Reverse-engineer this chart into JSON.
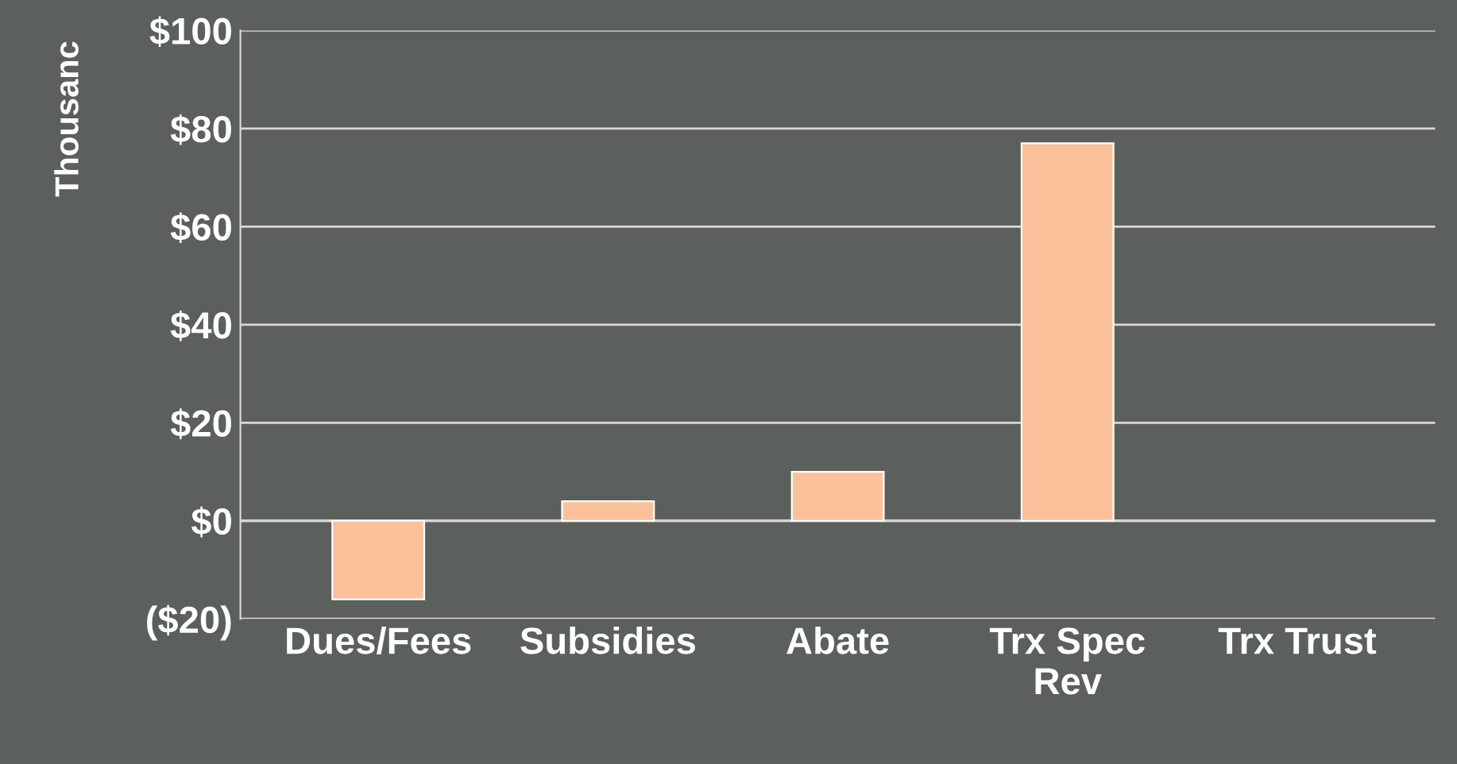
{
  "chart_data": {
    "type": "bar",
    "ylabel": "Thousanc",
    "categories": [
      "Dues/Fees",
      "Subsidies",
      "Abate",
      "Trx Spec\nRev",
      "Trx Trust"
    ],
    "values": [
      -16,
      4,
      10,
      77,
      null
    ],
    "color": "#fbc19b",
    "ylim": [
      -20,
      100
    ],
    "yticks": [
      {
        "value": -20,
        "label": "($20)"
      },
      {
        "value": 0,
        "label": "$0"
      },
      {
        "value": 20,
        "label": "$20"
      },
      {
        "value": 40,
        "label": "$40"
      },
      {
        "value": 60,
        "label": "$60"
      },
      {
        "value": 80,
        "label": "$80"
      },
      {
        "value": 100,
        "label": "$100"
      }
    ],
    "grid": "y"
  }
}
